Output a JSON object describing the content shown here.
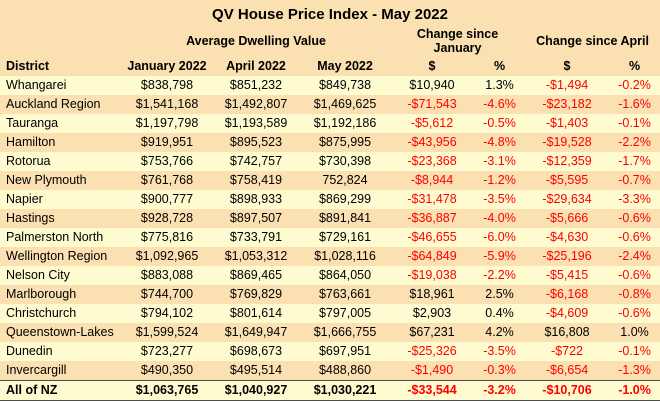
{
  "colors": {
    "header_band": "#fbe0b2",
    "row_yellow": "#fefbd0",
    "row_peach": "#fbe0b2",
    "negative_text": "#ff0000",
    "positive_text": "#000000"
  },
  "chart_data": {
    "type": "table",
    "title": "QV House Price Index - May 2022",
    "group_headers": [
      {
        "label": "Average Dwelling Value",
        "span": 3
      },
      {
        "label": "Change since January",
        "span": 2
      },
      {
        "label": "Change since April",
        "span": 2
      }
    ],
    "columns": [
      "District",
      "January 2022",
      "April 2022",
      "May 2022",
      "$",
      "%",
      "$",
      "%"
    ],
    "rows": [
      [
        "Whangarei",
        "$838,798",
        "$851,232",
        "$849,738",
        "$10,940",
        "1.3%",
        "-$1,494",
        "-0.2%"
      ],
      [
        "Auckland Region",
        "$1,541,168",
        "$1,492,807",
        "$1,469,625",
        "-$71,543",
        "-4.6%",
        "-$23,182",
        "-1.6%"
      ],
      [
        "Tauranga",
        "$1,197,798",
        "$1,193,589",
        "$1,192,186",
        "-$5,612",
        "-0.5%",
        "-$1,403",
        "-0.1%"
      ],
      [
        "Hamilton",
        "$919,951",
        "$895,523",
        "$875,995",
        "-$43,956",
        "-4.8%",
        "-$19,528",
        "-2.2%"
      ],
      [
        "Rotorua",
        "$753,766",
        "$742,757",
        "$730,398",
        "-$23,368",
        "-3.1%",
        "-$12,359",
        "-1.7%"
      ],
      [
        "New Plymouth",
        "$761,768",
        "$758,419",
        "752,824",
        "-$8,944",
        "-1.2%",
        "-$5,595",
        "-0.7%"
      ],
      [
        "Napier",
        "$900,777",
        "$898,933",
        "$869,299",
        "-$31,478",
        "-3.5%",
        "-$29,634",
        "-3.3%"
      ],
      [
        "Hastings",
        "$928,728",
        "$897,507",
        "$891,841",
        "-$36,887",
        "-4.0%",
        "-$5,666",
        "-0.6%"
      ],
      [
        "Palmerston North",
        "$775,816",
        "$733,791",
        "$729,161",
        "-$46,655",
        "-6.0%",
        "-$4,630",
        "-0.6%"
      ],
      [
        "Wellington Region",
        "$1,092,965",
        "$1,053,312",
        "$1,028,116",
        "-$64,849",
        "-5.9%",
        "-$25,196",
        "-2.4%"
      ],
      [
        "Nelson City",
        "$883,088",
        "$869,465",
        "$864,050",
        "-$19,038",
        "-2.2%",
        "-$5,415",
        "-0.6%"
      ],
      [
        "Marlborough",
        "$744,700",
        "$769,829",
        "$763,661",
        "$18,961",
        "2.5%",
        "-$6,168",
        "-0.8%"
      ],
      [
        "Christchurch",
        "$794,102",
        "$801,614",
        "$797,005",
        "$2,903",
        "0.4%",
        "-$4,609",
        "-0.6%"
      ],
      [
        "Queenstown-Lakes",
        "$1,599,524",
        "$1,649,947",
        "$1,666,755",
        "$67,231",
        "4.2%",
        "$16,808",
        "1.0%"
      ],
      [
        "Dunedin",
        "$723,277",
        "$698,673",
        "$697,951",
        "-$25,326",
        "-3.5%",
        "-$722",
        "-0.1%"
      ],
      [
        "Invercargill",
        "$490,350",
        "$495,514",
        "$488,860",
        "-$1,490",
        "-0.3%",
        "-$6,654",
        "-1.3%"
      ]
    ],
    "total_row": [
      "All of NZ",
      "$1,063,765",
      "$1,040,927",
      "$1,030,221",
      "-$33,544",
      "-3.2%",
      "-$10,706",
      "-1.0%"
    ]
  }
}
